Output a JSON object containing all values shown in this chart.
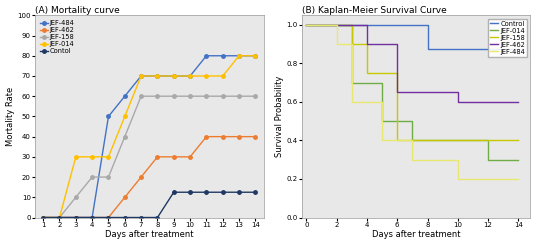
{
  "panel_A_title": "(A) Mortality curve",
  "panel_B_title": "(B) Kaplan-Meier Survival Curve",
  "mortality": {
    "days": [
      1,
      2,
      3,
      4,
      5,
      6,
      7,
      8,
      9,
      10,
      11,
      12,
      13,
      14
    ],
    "JEF-484": [
      0,
      0,
      0,
      0,
      50,
      60,
      70,
      70,
      70,
      70,
      80,
      80,
      80,
      80
    ],
    "JEF-462": [
      0,
      0,
      0,
      0,
      0,
      10,
      20,
      30,
      30,
      30,
      40,
      40,
      40,
      40
    ],
    "JEF-158": [
      0,
      0,
      10,
      20,
      20,
      40,
      60,
      60,
      60,
      60,
      60,
      60,
      60,
      60
    ],
    "JEF-014": [
      0,
      0,
      30,
      30,
      30,
      50,
      70,
      70,
      70,
      70,
      70,
      70,
      80,
      80
    ],
    "Contol": [
      0,
      0,
      0,
      0,
      0,
      0,
      0,
      0,
      12.5,
      12.5,
      12.5,
      12.5,
      12.5,
      12.5
    ]
  },
  "mortality_colors": {
    "JEF-484": "#4472C4",
    "JEF-462": "#ED7D31",
    "JEF-158": "#A9A9A9",
    "JEF-014": "#FFC000",
    "Contol": "#1F3864"
  },
  "km": {
    "Control": {
      "x": [
        0,
        8,
        8,
        14
      ],
      "y": [
        1.0,
        1.0,
        0.875,
        0.875
      ],
      "color": "#4472C4"
    },
    "JEF-014": {
      "x": [
        0,
        3,
        3,
        5,
        5,
        7,
        7,
        12,
        12,
        14
      ],
      "y": [
        1.0,
        1.0,
        0.7,
        0.7,
        0.5,
        0.5,
        0.4,
        0.4,
        0.3,
        0.3
      ],
      "color": "#70AD47"
    },
    "JEF-158": {
      "x": [
        0,
        3,
        3,
        4,
        4,
        6,
        6,
        14
      ],
      "y": [
        1.0,
        1.0,
        0.9,
        0.9,
        0.75,
        0.75,
        0.4,
        0.4
      ],
      "color": "#C8C800"
    },
    "JEF-462": {
      "x": [
        0,
        4,
        4,
        6,
        6,
        10,
        10,
        14
      ],
      "y": [
        1.0,
        1.0,
        0.9,
        0.9,
        0.65,
        0.65,
        0.6,
        0.6
      ],
      "color": "#7030A0"
    },
    "JEF-484": {
      "x": [
        0,
        2,
        2,
        3,
        3,
        5,
        5,
        7,
        7,
        10,
        10,
        13,
        13,
        14
      ],
      "y": [
        1.0,
        1.0,
        0.9,
        0.9,
        0.6,
        0.6,
        0.4,
        0.4,
        0.3,
        0.3,
        0.2,
        0.2,
        0.2,
        0.2
      ],
      "color": "#E8E870"
    }
  },
  "plot_bg": "#E8E8E8",
  "fig_bg": "#FFFFFF",
  "ylabel_A": "Mortality Rate",
  "ylabel_B": "Survival Probability",
  "xlabel": "Days after treatment",
  "ylim_A": [
    0,
    100
  ],
  "yticks_A": [
    0,
    10,
    20,
    30,
    40,
    50,
    60,
    70,
    80,
    90,
    100
  ],
  "ylim_B_min": 0.0,
  "ylim_B_max": 1.05,
  "yticks_B": [
    0.0,
    0.2,
    0.4,
    0.6,
    0.8,
    1.0
  ],
  "xticks_A": [
    1,
    2,
    3,
    4,
    5,
    6,
    7,
    8,
    9,
    10,
    11,
    12,
    13,
    14
  ],
  "xticks_B": [
    0,
    2,
    4,
    6,
    8,
    10,
    12,
    14
  ]
}
